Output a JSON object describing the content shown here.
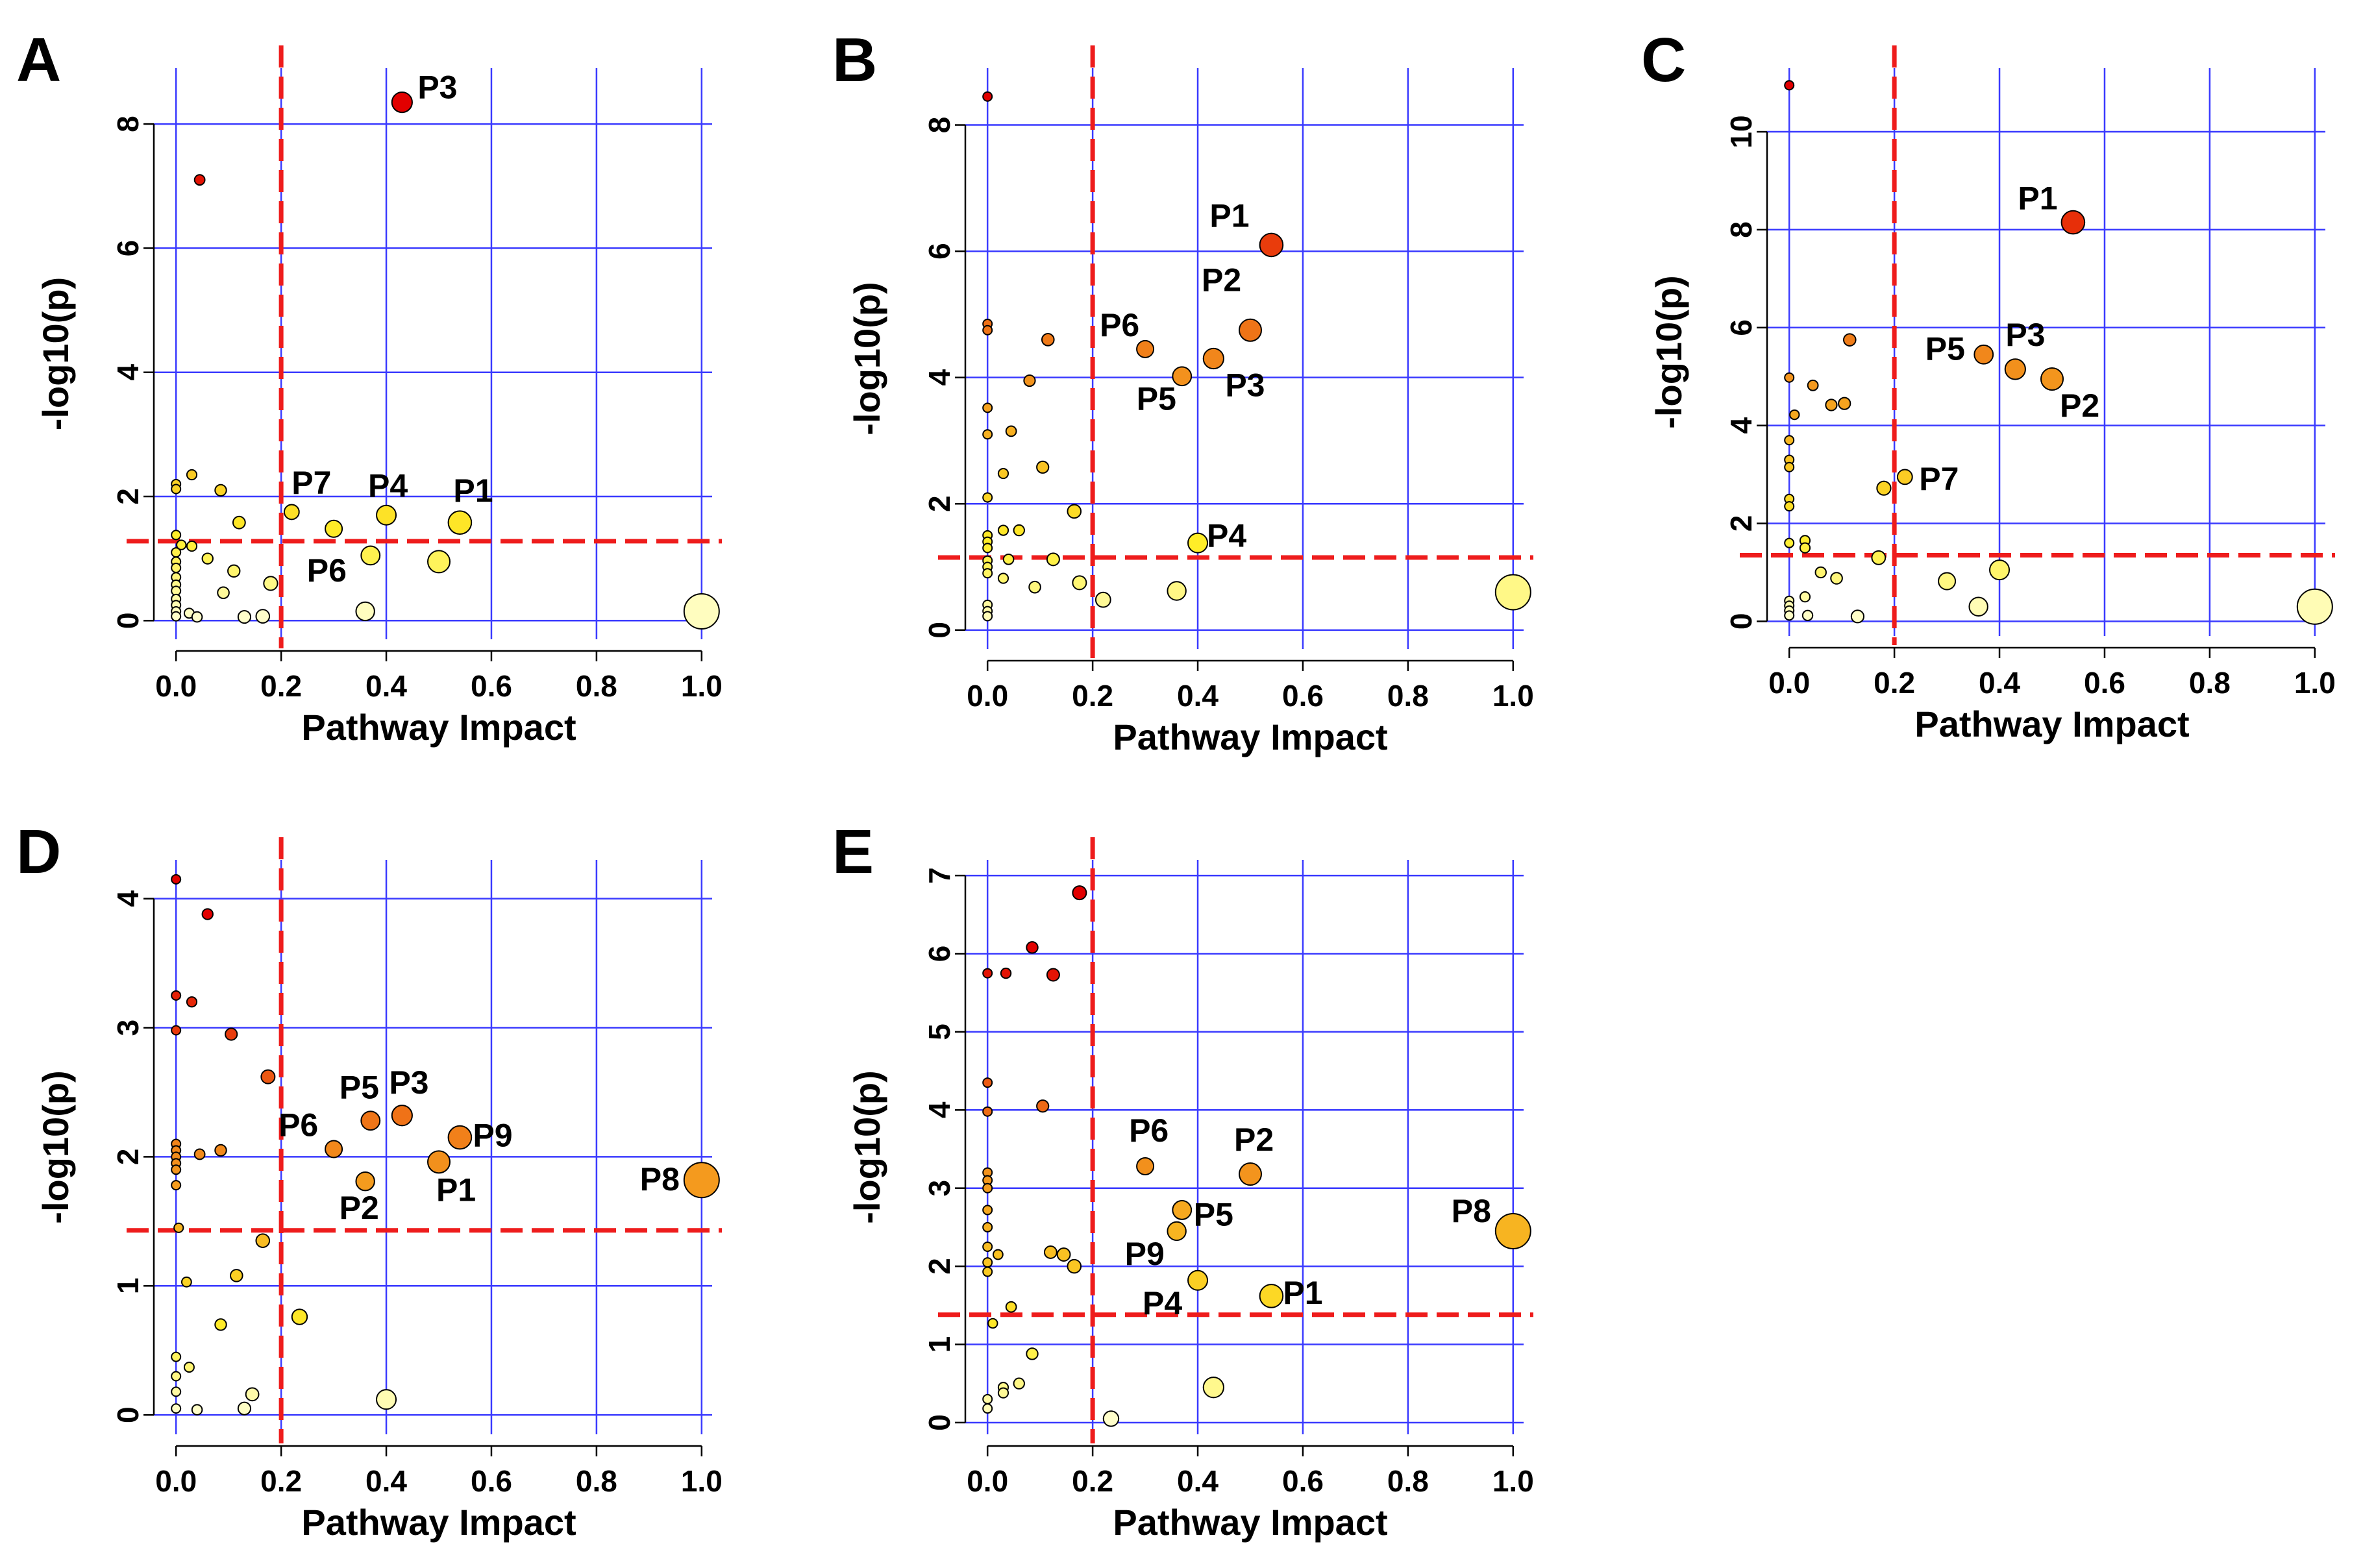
{
  "chart_data": [
    {
      "type": "scatter",
      "panel": "A",
      "xlabel": "Pathway Impact",
      "ylabel": "-log10(p)",
      "xlim": [
        -0.02,
        1.02
      ],
      "ylim": [
        -0.3,
        8.9
      ],
      "xticks": [
        0.0,
        0.2,
        0.4,
        0.6,
        0.8,
        1.0
      ],
      "yticks": [
        0,
        2,
        4,
        6,
        8
      ],
      "xtick_labels": [
        "0.0",
        "0.2",
        "0.4",
        "0.6",
        "0.8",
        "1.0"
      ],
      "ytick_labels": [
        "0",
        "2",
        "4",
        "6",
        "8"
      ],
      "xthreshold": 0.2,
      "ythreshold": 1.28,
      "points": [
        {
          "x": 0.43,
          "y": 8.35,
          "label": "P3"
        },
        {
          "x": 0.045,
          "y": 7.1,
          "label": ""
        },
        {
          "x": 0.03,
          "y": 2.35,
          "label": ""
        },
        {
          "x": 0.0,
          "y": 2.2,
          "label": ""
        },
        {
          "x": 0.0,
          "y": 2.12,
          "label": ""
        },
        {
          "x": 0.085,
          "y": 2.1,
          "label": ""
        },
        {
          "x": 0.12,
          "y": 1.58,
          "label": ""
        },
        {
          "x": 0.0,
          "y": 1.38,
          "label": ""
        },
        {
          "x": 0.01,
          "y": 1.22,
          "label": ""
        },
        {
          "x": 0.03,
          "y": 1.2,
          "label": ""
        },
        {
          "x": 0.0,
          "y": 1.1,
          "label": ""
        },
        {
          "x": 0.06,
          "y": 1.0,
          "label": ""
        },
        {
          "x": 0.0,
          "y": 0.95,
          "label": ""
        },
        {
          "x": 0.0,
          "y": 0.85,
          "label": ""
        },
        {
          "x": 0.11,
          "y": 0.8,
          "label": ""
        },
        {
          "x": 0.0,
          "y": 0.7,
          "label": ""
        },
        {
          "x": 0.0,
          "y": 0.58,
          "label": ""
        },
        {
          "x": 0.18,
          "y": 0.6,
          "label": ""
        },
        {
          "x": 0.0,
          "y": 0.48,
          "label": ""
        },
        {
          "x": 0.09,
          "y": 0.45,
          "label": ""
        },
        {
          "x": 0.0,
          "y": 0.35,
          "label": ""
        },
        {
          "x": 0.0,
          "y": 0.25,
          "label": ""
        },
        {
          "x": 0.0,
          "y": 0.15,
          "label": ""
        },
        {
          "x": 0.025,
          "y": 0.12,
          "label": ""
        },
        {
          "x": 0.0,
          "y": 0.07,
          "label": ""
        },
        {
          "x": 0.04,
          "y": 0.06,
          "label": ""
        },
        {
          "x": 0.13,
          "y": 0.06,
          "label": ""
        },
        {
          "x": 0.165,
          "y": 0.07,
          "label": ""
        },
        {
          "x": 0.36,
          "y": 0.15,
          "label": ""
        },
        {
          "x": 1.0,
          "y": 0.15,
          "label": ""
        },
        {
          "x": 0.22,
          "y": 1.75,
          "label": "P7"
        },
        {
          "x": 0.4,
          "y": 1.7,
          "label": "P4"
        },
        {
          "x": 0.54,
          "y": 1.58,
          "label": "P1"
        },
        {
          "x": 0.3,
          "y": 1.48,
          "label": ""
        },
        {
          "x": 0.37,
          "y": 1.05,
          "label": "P6"
        },
        {
          "x": 0.5,
          "y": 0.95,
          "label": ""
        }
      ]
    },
    {
      "type": "scatter",
      "panel": "B",
      "xlabel": "Pathway Impact",
      "ylabel": "-log10(p)",
      "xlim": [
        -0.02,
        1.02
      ],
      "ylim": [
        -0.3,
        8.9
      ],
      "xticks": [
        0.0,
        0.2,
        0.4,
        0.6,
        0.8,
        1.0
      ],
      "yticks": [
        0,
        2,
        4,
        6,
        8
      ],
      "xtick_labels": [
        "0.0",
        "0.2",
        "0.4",
        "0.6",
        "0.8",
        "1.0"
      ],
      "ytick_labels": [
        "0",
        "2",
        "4",
        "6",
        "8"
      ],
      "xthreshold": 0.2,
      "ythreshold": 1.15,
      "points": [
        {
          "x": 0.0,
          "y": 8.45,
          "label": ""
        },
        {
          "x": 0.54,
          "y": 6.1,
          "label": "P1"
        },
        {
          "x": 0.5,
          "y": 4.75,
          "label": "P2"
        },
        {
          "x": 0.3,
          "y": 4.45,
          "label": "P6"
        },
        {
          "x": 0.43,
          "y": 4.3,
          "label": "P3"
        },
        {
          "x": 0.37,
          "y": 4.02,
          "label": "P5"
        },
        {
          "x": 0.4,
          "y": 1.38,
          "label": "P4"
        },
        {
          "x": 0.0,
          "y": 4.85,
          "label": ""
        },
        {
          "x": 0.0,
          "y": 4.75,
          "label": ""
        },
        {
          "x": 0.115,
          "y": 4.6,
          "label": ""
        },
        {
          "x": 0.08,
          "y": 3.95,
          "label": ""
        },
        {
          "x": 0.0,
          "y": 3.52,
          "label": ""
        },
        {
          "x": 0.045,
          "y": 3.15,
          "label": ""
        },
        {
          "x": 0.0,
          "y": 3.1,
          "label": ""
        },
        {
          "x": 0.03,
          "y": 2.48,
          "label": ""
        },
        {
          "x": 0.105,
          "y": 2.58,
          "label": ""
        },
        {
          "x": 0.0,
          "y": 2.1,
          "label": ""
        },
        {
          "x": 0.165,
          "y": 1.88,
          "label": ""
        },
        {
          "x": 0.03,
          "y": 1.58,
          "label": ""
        },
        {
          "x": 0.06,
          "y": 1.58,
          "label": ""
        },
        {
          "x": 0.0,
          "y": 1.5,
          "label": ""
        },
        {
          "x": 0.0,
          "y": 1.4,
          "label": ""
        },
        {
          "x": 0.0,
          "y": 1.3,
          "label": ""
        },
        {
          "x": 0.0,
          "y": 1.1,
          "label": ""
        },
        {
          "x": 0.04,
          "y": 1.12,
          "label": ""
        },
        {
          "x": 0.125,
          "y": 1.12,
          "label": ""
        },
        {
          "x": 0.0,
          "y": 1.0,
          "label": ""
        },
        {
          "x": 0.0,
          "y": 0.9,
          "label": ""
        },
        {
          "x": 0.03,
          "y": 0.82,
          "label": ""
        },
        {
          "x": 0.09,
          "y": 0.68,
          "label": ""
        },
        {
          "x": 0.175,
          "y": 0.75,
          "label": ""
        },
        {
          "x": 0.36,
          "y": 0.62,
          "label": ""
        },
        {
          "x": 0.22,
          "y": 0.48,
          "label": ""
        },
        {
          "x": 0.0,
          "y": 0.4,
          "label": ""
        },
        {
          "x": 0.0,
          "y": 0.3,
          "label": ""
        },
        {
          "x": 0.0,
          "y": 0.22,
          "label": ""
        },
        {
          "x": 1.0,
          "y": 0.6,
          "label": ""
        }
      ]
    },
    {
      "type": "scatter",
      "panel": "C",
      "xlabel": "Pathway Impact",
      "ylabel": "-log10(p)",
      "xlim": [
        -0.02,
        1.02
      ],
      "ylim": [
        -0.3,
        11.3
      ],
      "xticks": [
        0.0,
        0.2,
        0.4,
        0.6,
        0.8,
        1.0
      ],
      "yticks": [
        0,
        2,
        4,
        6,
        8,
        10
      ],
      "xtick_labels": [
        "0.0",
        "0.2",
        "0.4",
        "0.6",
        "0.8",
        "1.0"
      ],
      "ytick_labels": [
        "0",
        "2",
        "4",
        "6",
        "8",
        "10"
      ],
      "xthreshold": 0.2,
      "ythreshold": 1.35,
      "points": [
        {
          "x": 0.0,
          "y": 10.95,
          "label": ""
        },
        {
          "x": 0.54,
          "y": 8.15,
          "label": "P1"
        },
        {
          "x": 0.37,
          "y": 5.45,
          "label": "P5"
        },
        {
          "x": 0.43,
          "y": 5.15,
          "label": "P3"
        },
        {
          "x": 0.5,
          "y": 4.95,
          "label": "P2"
        },
        {
          "x": 0.22,
          "y": 2.95,
          "label": "P7"
        },
        {
          "x": 0.115,
          "y": 5.75,
          "label": ""
        },
        {
          "x": 0.0,
          "y": 4.98,
          "label": ""
        },
        {
          "x": 0.045,
          "y": 4.82,
          "label": ""
        },
        {
          "x": 0.08,
          "y": 4.42,
          "label": ""
        },
        {
          "x": 0.105,
          "y": 4.45,
          "label": ""
        },
        {
          "x": 0.01,
          "y": 4.22,
          "label": ""
        },
        {
          "x": 0.0,
          "y": 3.7,
          "label": ""
        },
        {
          "x": 0.0,
          "y": 3.3,
          "label": ""
        },
        {
          "x": 0.0,
          "y": 3.15,
          "label": ""
        },
        {
          "x": 0.18,
          "y": 2.72,
          "label": ""
        },
        {
          "x": 0.0,
          "y": 2.5,
          "label": ""
        },
        {
          "x": 0.0,
          "y": 2.35,
          "label": ""
        },
        {
          "x": 0.03,
          "y": 1.65,
          "label": ""
        },
        {
          "x": 0.0,
          "y": 1.6,
          "label": ""
        },
        {
          "x": 0.03,
          "y": 1.5,
          "label": ""
        },
        {
          "x": 0.17,
          "y": 1.3,
          "label": ""
        },
        {
          "x": 0.06,
          "y": 1.0,
          "label": ""
        },
        {
          "x": 0.4,
          "y": 1.05,
          "label": ""
        },
        {
          "x": 0.09,
          "y": 0.88,
          "label": ""
        },
        {
          "x": 0.3,
          "y": 0.82,
          "label": ""
        },
        {
          "x": 0.03,
          "y": 0.5,
          "label": ""
        },
        {
          "x": 0.0,
          "y": 0.42,
          "label": ""
        },
        {
          "x": 0.0,
          "y": 0.32,
          "label": ""
        },
        {
          "x": 0.0,
          "y": 0.22,
          "label": ""
        },
        {
          "x": 0.36,
          "y": 0.3,
          "label": ""
        },
        {
          "x": 0.0,
          "y": 0.12,
          "label": ""
        },
        {
          "x": 0.035,
          "y": 0.12,
          "label": ""
        },
        {
          "x": 0.13,
          "y": 0.1,
          "label": ""
        },
        {
          "x": 1.0,
          "y": 0.3,
          "label": ""
        }
      ]
    },
    {
      "type": "scatter",
      "panel": "D",
      "xlabel": "Pathway Impact",
      "ylabel": "-log10(p)",
      "xlim": [
        -0.02,
        1.02
      ],
      "ylim": [
        -0.15,
        4.3
      ],
      "xticks": [
        0.0,
        0.2,
        0.4,
        0.6,
        0.8,
        1.0
      ],
      "yticks": [
        0,
        1,
        2,
        3,
        4
      ],
      "xtick_labels": [
        "0.0",
        "0.2",
        "0.4",
        "0.6",
        "0.8",
        "1.0"
      ],
      "ytick_labels": [
        "0",
        "1",
        "2",
        "3",
        "4"
      ],
      "xthreshold": 0.2,
      "ythreshold": 1.43,
      "points": [
        {
          "x": 0.0,
          "y": 4.15,
          "label": ""
        },
        {
          "x": 0.06,
          "y": 3.88,
          "label": ""
        },
        {
          "x": 0.0,
          "y": 3.25,
          "label": ""
        },
        {
          "x": 0.03,
          "y": 3.2,
          "label": ""
        },
        {
          "x": 0.0,
          "y": 2.98,
          "label": ""
        },
        {
          "x": 0.105,
          "y": 2.95,
          "label": ""
        },
        {
          "x": 0.175,
          "y": 2.62,
          "label": ""
        },
        {
          "x": 0.43,
          "y": 2.32,
          "label": "P3"
        },
        {
          "x": 0.37,
          "y": 2.28,
          "label": "P5"
        },
        {
          "x": 0.54,
          "y": 2.15,
          "label": "P9"
        },
        {
          "x": 0.3,
          "y": 2.06,
          "label": "P6"
        },
        {
          "x": 0.5,
          "y": 1.96,
          "label": "P1"
        },
        {
          "x": 0.36,
          "y": 1.81,
          "label": "P2"
        },
        {
          "x": 1.0,
          "y": 1.82,
          "label": "P8"
        },
        {
          "x": 0.0,
          "y": 2.1,
          "label": ""
        },
        {
          "x": 0.0,
          "y": 2.05,
          "label": ""
        },
        {
          "x": 0.0,
          "y": 2.0,
          "label": ""
        },
        {
          "x": 0.085,
          "y": 2.05,
          "label": ""
        },
        {
          "x": 0.045,
          "y": 2.02,
          "label": ""
        },
        {
          "x": 0.0,
          "y": 1.95,
          "label": ""
        },
        {
          "x": 0.0,
          "y": 1.9,
          "label": ""
        },
        {
          "x": 0.0,
          "y": 1.78,
          "label": ""
        },
        {
          "x": 0.005,
          "y": 1.45,
          "label": ""
        },
        {
          "x": 0.165,
          "y": 1.35,
          "label": ""
        },
        {
          "x": 0.115,
          "y": 1.08,
          "label": ""
        },
        {
          "x": 0.02,
          "y": 1.03,
          "label": ""
        },
        {
          "x": 0.235,
          "y": 0.76,
          "label": ""
        },
        {
          "x": 0.085,
          "y": 0.7,
          "label": ""
        },
        {
          "x": 0.0,
          "y": 0.45,
          "label": ""
        },
        {
          "x": 0.025,
          "y": 0.37,
          "label": ""
        },
        {
          "x": 0.0,
          "y": 0.3,
          "label": ""
        },
        {
          "x": 0.0,
          "y": 0.18,
          "label": ""
        },
        {
          "x": 0.145,
          "y": 0.16,
          "label": ""
        },
        {
          "x": 0.4,
          "y": 0.12,
          "label": ""
        },
        {
          "x": 0.0,
          "y": 0.05,
          "label": ""
        },
        {
          "x": 0.04,
          "y": 0.04,
          "label": ""
        },
        {
          "x": 0.13,
          "y": 0.05,
          "label": ""
        }
      ]
    },
    {
      "type": "scatter",
      "panel": "E",
      "xlabel": "Pathway Impact",
      "ylabel": "-log10(p)",
      "xlim": [
        -0.02,
        1.02
      ],
      "ylim": [
        -0.15,
        7.2
      ],
      "xticks": [
        0.0,
        0.2,
        0.4,
        0.6,
        0.8,
        1.0
      ],
      "yticks": [
        0,
        1,
        2,
        3,
        4,
        5,
        6,
        7
      ],
      "xtick_labels": [
        "0.0",
        "0.2",
        "0.4",
        "0.6",
        "0.8",
        "1.0"
      ],
      "ytick_labels": [
        "0",
        "1",
        "2",
        "3",
        "4",
        "5",
        "6",
        "7"
      ],
      "xthreshold": 0.2,
      "ythreshold": 1.38,
      "points": [
        {
          "x": 0.175,
          "y": 6.78,
          "label": ""
        },
        {
          "x": 0.085,
          "y": 6.08,
          "label": ""
        },
        {
          "x": 0.0,
          "y": 5.75,
          "label": ""
        },
        {
          "x": 0.035,
          "y": 5.75,
          "label": ""
        },
        {
          "x": 0.125,
          "y": 5.73,
          "label": ""
        },
        {
          "x": 0.0,
          "y": 4.35,
          "label": ""
        },
        {
          "x": 0.105,
          "y": 4.05,
          "label": ""
        },
        {
          "x": 0.0,
          "y": 3.98,
          "label": ""
        },
        {
          "x": 0.0,
          "y": 3.2,
          "label": ""
        },
        {
          "x": 0.0,
          "y": 3.1,
          "label": ""
        },
        {
          "x": 0.0,
          "y": 3.0,
          "label": ""
        },
        {
          "x": 0.0,
          "y": 2.72,
          "label": ""
        },
        {
          "x": 0.0,
          "y": 2.5,
          "label": ""
        },
        {
          "x": 0.0,
          "y": 2.25,
          "label": ""
        },
        {
          "x": 0.02,
          "y": 2.15,
          "label": ""
        },
        {
          "x": 0.0,
          "y": 2.05,
          "label": ""
        },
        {
          "x": 0.0,
          "y": 1.93,
          "label": ""
        },
        {
          "x": 0.12,
          "y": 2.18,
          "label": ""
        },
        {
          "x": 0.145,
          "y": 2.15,
          "label": ""
        },
        {
          "x": 0.165,
          "y": 2.0,
          "label": ""
        },
        {
          "x": 0.3,
          "y": 3.28,
          "label": "P6"
        },
        {
          "x": 0.5,
          "y": 3.18,
          "label": "P2"
        },
        {
          "x": 0.37,
          "y": 2.72,
          "label": "P5"
        },
        {
          "x": 0.36,
          "y": 2.45,
          "label": "P9"
        },
        {
          "x": 1.0,
          "y": 2.45,
          "label": "P8"
        },
        {
          "x": 0.4,
          "y": 1.82,
          "label": "P4"
        },
        {
          "x": 0.54,
          "y": 1.62,
          "label": "P1"
        },
        {
          "x": 0.045,
          "y": 1.48,
          "label": ""
        },
        {
          "x": 0.01,
          "y": 1.27,
          "label": ""
        },
        {
          "x": 0.085,
          "y": 0.88,
          "label": ""
        },
        {
          "x": 0.06,
          "y": 0.5,
          "label": ""
        },
        {
          "x": 0.03,
          "y": 0.45,
          "label": ""
        },
        {
          "x": 0.03,
          "y": 0.38,
          "label": ""
        },
        {
          "x": 0.43,
          "y": 0.45,
          "label": ""
        },
        {
          "x": 0.0,
          "y": 0.3,
          "label": ""
        },
        {
          "x": 0.0,
          "y": 0.18,
          "label": ""
        },
        {
          "x": 0.235,
          "y": 0.05,
          "label": ""
        }
      ]
    }
  ]
}
